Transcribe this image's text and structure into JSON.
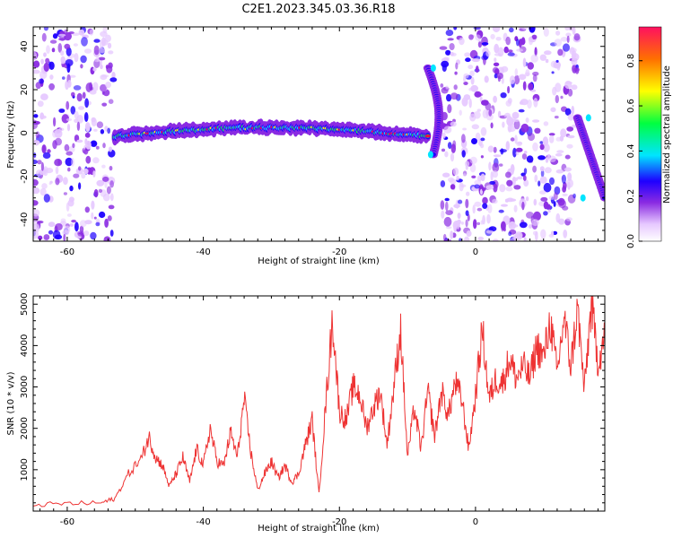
{
  "figure": {
    "title": "C2E1.2023.345.03.36.R18"
  },
  "chart_data": [
    {
      "type": "heatmap",
      "title": "C2E1.2023.345.03.36.R18",
      "xlabel": "Height of straight line (km)",
      "ylabel": "Frequency (Hz)",
      "xlim": [
        -65,
        19
      ],
      "ylim": [
        -50,
        49
      ],
      "xticks": [
        -60,
        -40,
        -20,
        0
      ],
      "yticks": [
        -40,
        -20,
        0,
        20,
        40
      ],
      "colorbar": {
        "label": "Normalized spectral amplitude",
        "range": [
          0,
          0.95
        ],
        "ticks": [
          0.0,
          0.2,
          0.4,
          0.6,
          0.8
        ],
        "colormap": [
          "#ffffff",
          "#e6c8ff",
          "#8a2be2",
          "#1e00ff",
          "#00e5ff",
          "#00ff40",
          "#ffff00",
          "#ff7000",
          "#ff0040"
        ]
      },
      "regions": [
        {
          "name": "noise",
          "x_range": [
            -65,
            -53
          ],
          "y_range": [
            -50,
            49
          ]
        },
        {
          "name": "signal-band",
          "x_range": [
            -53,
            -7
          ],
          "frequency_center": [
            -1.5,
            2.5
          ],
          "bandwidth": 6
        },
        {
          "name": "curl",
          "x_range": [
            -7,
            -5
          ],
          "frequency_range": [
            -10,
            30
          ]
        },
        {
          "name": "noise",
          "x_range": [
            -5,
            15
          ],
          "y_range": [
            -50,
            49
          ]
        },
        {
          "name": "curl",
          "x_range": [
            15,
            19
          ],
          "frequency_range": [
            -30,
            7
          ]
        }
      ]
    },
    {
      "type": "line",
      "xlabel": "Height of straight line (km)",
      "ylabel": "SNR (10 * v/v)",
      "xlim": [
        -65,
        19
      ],
      "ylim": [
        0,
        5200
      ],
      "xticks": [
        -60,
        -40,
        -20,
        0
      ],
      "yticks": [
        1000,
        2000,
        3000,
        4000,
        5000
      ],
      "color": "#ee3333",
      "series": [
        {
          "x": [
            -65,
            -60,
            -55,
            -53,
            -51,
            -49,
            -48,
            -47,
            -46,
            -45,
            -44,
            -43,
            -42,
            -41,
            -40,
            -39,
            -38,
            -37,
            -36,
            -35,
            -34,
            -33,
            -32,
            -31,
            -30,
            -29,
            -28,
            -27,
            -26,
            -25,
            -24,
            -23,
            -22,
            -21,
            -20,
            -19,
            -18,
            -17,
            -16,
            -15,
            -14,
            -13,
            -12,
            -11,
            -10,
            -9,
            -8,
            -7,
            -6,
            -5,
            -4,
            -3,
            -2,
            -1,
            0,
            1,
            2,
            3,
            4,
            5,
            6,
            7,
            8,
            9,
            10,
            11,
            12,
            13,
            14,
            15,
            16,
            17,
            18,
            19
          ],
          "y": [
            150,
            180,
            200,
            300,
            900,
            1300,
            1800,
            1300,
            1100,
            600,
            900,
            1300,
            700,
            1500,
            1100,
            2000,
            1200,
            1100,
            1900,
            1300,
            2700,
            1400,
            500,
            900,
            1200,
            800,
            1100,
            700,
            900,
            1600,
            2200,
            400,
            2600,
            4650,
            2400,
            2200,
            3000,
            2800,
            2000,
            2500,
            2900,
            1600,
            3000,
            4400,
            1300,
            2500,
            1500,
            2900,
            1800,
            2900,
            2300,
            3100,
            2700,
            1500,
            2800,
            4400,
            2700,
            3200,
            3100,
            3700,
            3200,
            3500,
            3200,
            4000,
            3700,
            4600,
            3300,
            4700,
            3500,
            4900,
            2900,
            5000,
            3600,
            4200
          ]
        }
      ]
    }
  ]
}
